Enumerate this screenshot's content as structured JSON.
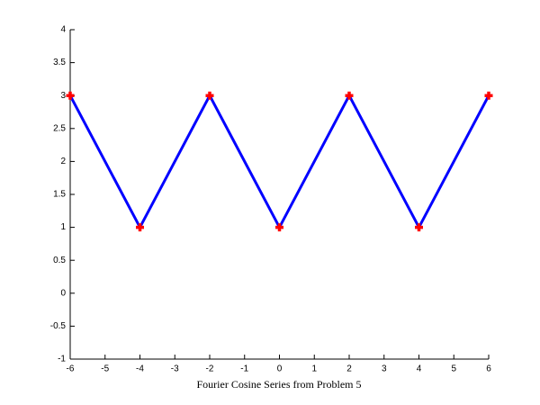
{
  "chart_data": {
    "type": "line",
    "x_label": "Fourier Cosine Series from Problem 5",
    "x": [
      -6,
      -4,
      -2,
      0,
      2,
      4,
      6
    ],
    "series": [
      {
        "color": "#0000ff",
        "values": [
          3,
          1,
          3,
          1,
          3,
          1,
          3
        ],
        "linestyle": "solid",
        "marker": "none"
      },
      {
        "color": "#ff0000",
        "values": [
          3,
          1,
          3,
          1,
          3,
          1,
          3
        ],
        "linestyle": "none",
        "marker": "plus"
      }
    ],
    "xlim": [
      -6,
      6
    ],
    "xticks": [
      -6,
      -5,
      -4,
      -3,
      -2,
      -1,
      0,
      1,
      2,
      3,
      4,
      5,
      6
    ],
    "ylim": [
      -1,
      4
    ],
    "yticks": [
      -1,
      -0.5,
      0,
      0.5,
      1,
      1.5,
      2,
      2.5,
      3,
      3.5,
      4
    ],
    "grid": false
  }
}
